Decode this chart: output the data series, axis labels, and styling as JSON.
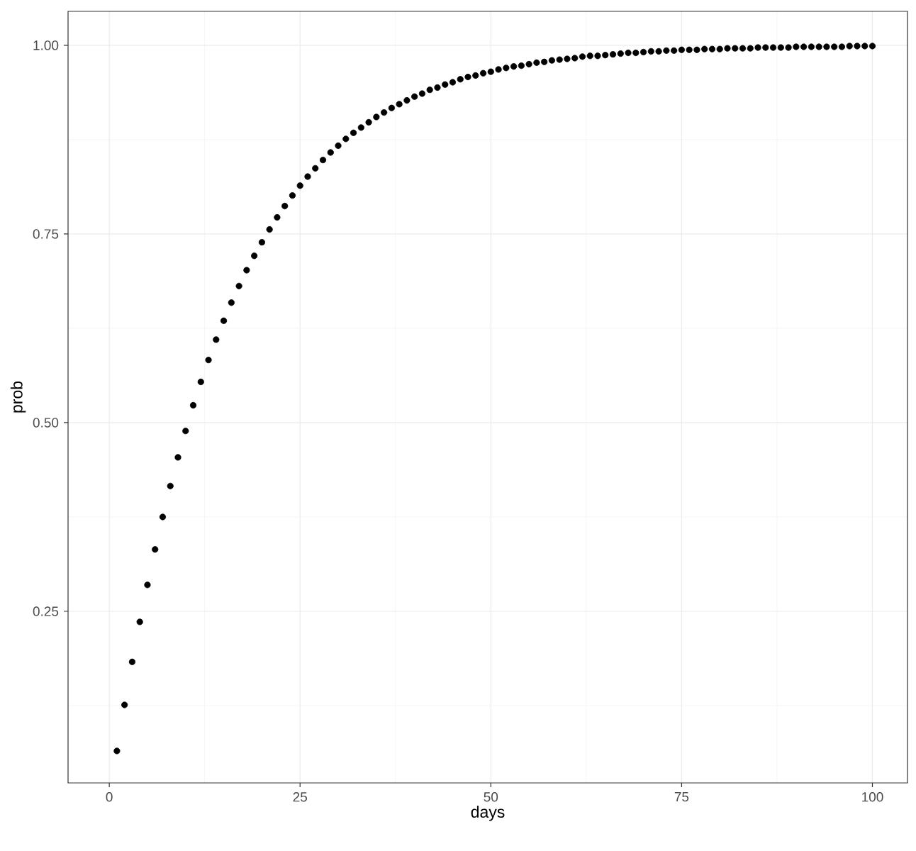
{
  "chart_data": {
    "type": "scatter",
    "xlabel": "days",
    "ylabel": "prob",
    "color": "#000000",
    "marker": "circle",
    "grid": true,
    "x": [
      1,
      2,
      3,
      4,
      5,
      6,
      7,
      8,
      9,
      10,
      11,
      12,
      13,
      14,
      15,
      16,
      17,
      18,
      19,
      20,
      21,
      22,
      23,
      24,
      25,
      26,
      27,
      28,
      29,
      30,
      31,
      32,
      33,
      34,
      35,
      36,
      37,
      38,
      39,
      40,
      41,
      42,
      43,
      44,
      45,
      46,
      47,
      48,
      49,
      50,
      51,
      52,
      53,
      54,
      55,
      56,
      57,
      58,
      59,
      60,
      61,
      62,
      63,
      64,
      65,
      66,
      67,
      68,
      69,
      70,
      71,
      72,
      73,
      74,
      75,
      76,
      77,
      78,
      79,
      80,
      81,
      82,
      83,
      84,
      85,
      86,
      87,
      88,
      89,
      90,
      91,
      92,
      93,
      94,
      95,
      96,
      97,
      98,
      99,
      100
    ],
    "values": [
      0.065,
      0.126,
      0.183,
      0.236,
      0.285,
      0.332,
      0.375,
      0.416,
      0.454,
      0.489,
      0.523,
      0.554,
      0.583,
      0.61,
      0.635,
      0.659,
      0.681,
      0.702,
      0.721,
      0.739,
      0.756,
      0.772,
      0.787,
      0.801,
      0.814,
      0.826,
      0.837,
      0.848,
      0.858,
      0.867,
      0.876,
      0.884,
      0.891,
      0.898,
      0.905,
      0.911,
      0.917,
      0.922,
      0.927,
      0.932,
      0.936,
      0.941,
      0.944,
      0.948,
      0.951,
      0.955,
      0.958,
      0.96,
      0.963,
      0.965,
      0.968,
      0.97,
      0.972,
      0.973,
      0.975,
      0.977,
      0.978,
      0.98,
      0.981,
      0.982,
      0.983,
      0.985,
      0.986,
      0.986,
      0.987,
      0.988,
      0.989,
      0.99,
      0.99,
      0.991,
      0.992,
      0.992,
      0.993,
      0.993,
      0.994,
      0.994,
      0.994,
      0.995,
      0.995,
      0.995,
      0.996,
      0.996,
      0.996,
      0.996,
      0.997,
      0.997,
      0.997,
      0.997,
      0.997,
      0.998,
      0.998,
      0.998,
      0.998,
      0.998,
      0.998,
      0.998,
      0.999,
      0.999,
      0.999,
      0.999
    ],
    "xlim": [
      -5.4,
      104.6
    ],
    "ylim": [
      0.0226,
      1.045
    ],
    "xticks": [
      0,
      25,
      50,
      75,
      100
    ],
    "yticks": [
      {
        "value": 0.25,
        "label": "0.25"
      },
      {
        "value": 0.5,
        "label": "0.50"
      },
      {
        "value": 0.75,
        "label": "0.75"
      },
      {
        "value": 1.0,
        "label": "1.00"
      }
    ]
  }
}
